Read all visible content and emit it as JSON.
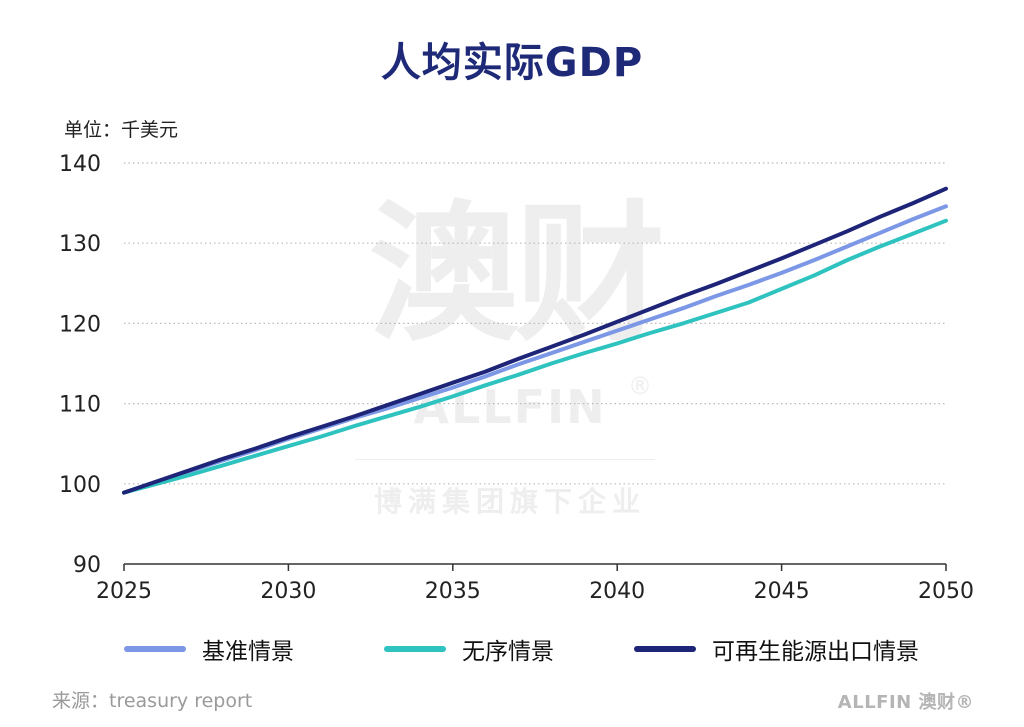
{
  "page": {
    "title": "人均实际GDP",
    "unit": "单位：千美元",
    "source": "来源：treasury report",
    "brand": "ALLFIN 澳财®"
  },
  "watermark": {
    "main": "澳财",
    "english": "ALLFIN",
    "registered": "®",
    "sub": "博满集团旗下企业"
  },
  "chart_data": {
    "type": "line",
    "title": "人均实际GDP",
    "xlabel": "",
    "ylabel": "单位：千美元",
    "xlim": [
      2025,
      2050
    ],
    "ylim": [
      90,
      140
    ],
    "xticks": [
      2025,
      2030,
      2035,
      2040,
      2045,
      2050
    ],
    "yticks": [
      90,
      100,
      110,
      120,
      130,
      140
    ],
    "grid": "horizontal-dotted",
    "legend_position": "bottom",
    "x": [
      2025,
      2026,
      2027,
      2028,
      2029,
      2030,
      2031,
      2032,
      2033,
      2034,
      2035,
      2036,
      2037,
      2038,
      2039,
      2040,
      2041,
      2042,
      2043,
      2044,
      2045,
      2046,
      2047,
      2048,
      2049,
      2050
    ],
    "series": [
      {
        "name": "基准情景",
        "color": "#7b97e6",
        "values": [
          98.9,
          100.2,
          101.6,
          102.9,
          104.2,
          105.6,
          106.9,
          108.2,
          109.4,
          110.7,
          112.0,
          113.4,
          114.9,
          116.3,
          117.7,
          119.1,
          120.5,
          121.9,
          123.4,
          124.8,
          126.3,
          127.9,
          129.6,
          131.3,
          133.0,
          134.6
        ]
      },
      {
        "name": "无序情景",
        "color": "#2fc3c0",
        "values": [
          98.9,
          100.0,
          101.1,
          102.3,
          103.5,
          104.7,
          105.9,
          107.2,
          108.4,
          109.6,
          110.9,
          112.3,
          113.6,
          115.0,
          116.3,
          117.5,
          118.8,
          120.0,
          121.3,
          122.6,
          124.3,
          126.0,
          127.9,
          129.6,
          131.2,
          132.8
        ]
      },
      {
        "name": "可再生能源出口情景",
        "color": "#1e2578",
        "values": [
          98.9,
          100.3,
          101.7,
          103.1,
          104.4,
          105.8,
          107.1,
          108.4,
          109.8,
          111.2,
          112.6,
          114.0,
          115.6,
          117.1,
          118.6,
          120.2,
          121.8,
          123.4,
          124.9,
          126.5,
          128.1,
          129.8,
          131.5,
          133.3,
          135.0,
          136.8
        ]
      }
    ]
  }
}
